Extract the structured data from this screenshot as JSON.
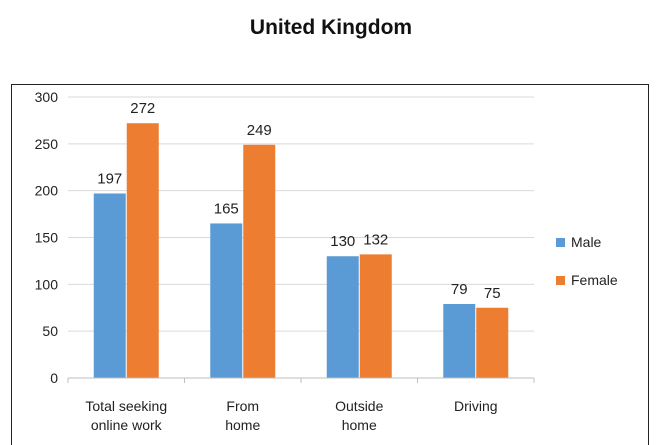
{
  "chart_data": {
    "type": "bar",
    "title": "United Kingdom",
    "categories": [
      [
        "Total seeking",
        "online work"
      ],
      [
        "From",
        "home"
      ],
      [
        "Outside",
        "home"
      ],
      [
        "Driving"
      ]
    ],
    "series": [
      {
        "name": "Male",
        "color": "#5b9bd5",
        "values": [
          197,
          165,
          130,
          79
        ]
      },
      {
        "name": "Female",
        "color": "#ed7d31",
        "values": [
          272,
          249,
          132,
          75
        ]
      }
    ],
    "yticks": [
      0,
      50,
      100,
      150,
      200,
      250,
      300
    ],
    "ylim": [
      0,
      300
    ],
    "grid": true,
    "legend": "right"
  }
}
